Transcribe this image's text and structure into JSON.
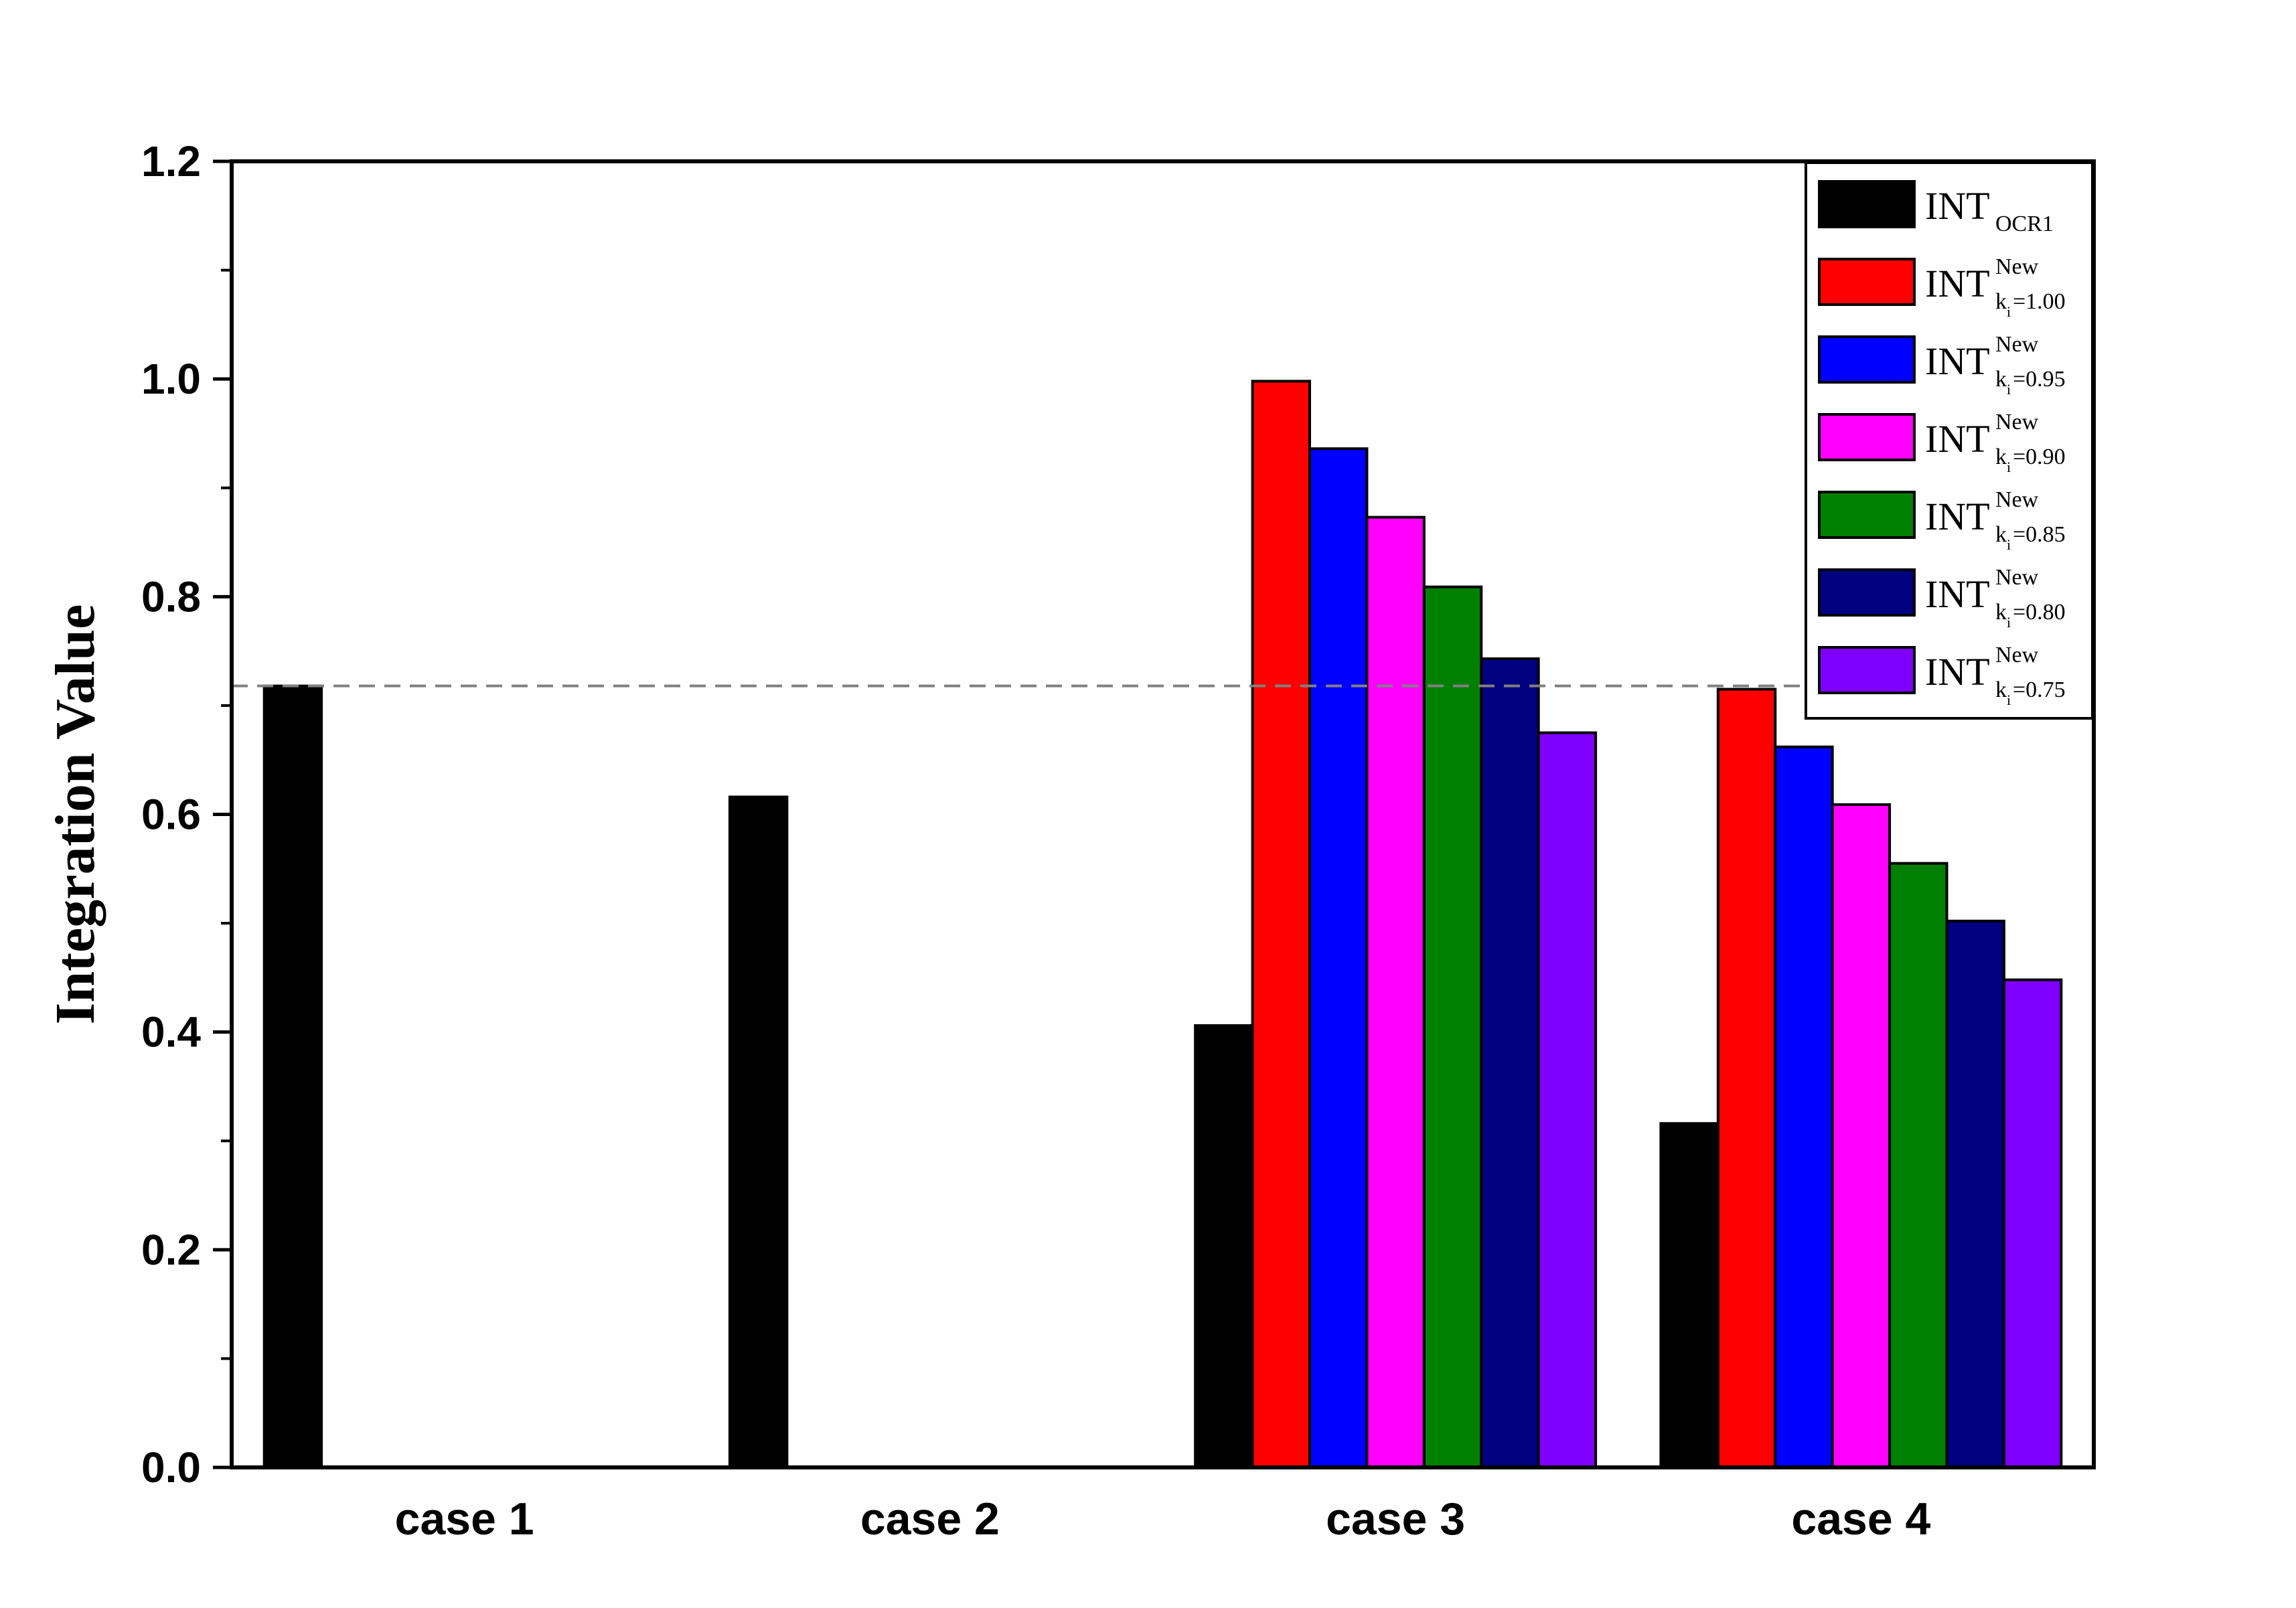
{
  "chart_data": {
    "type": "bar",
    "title": "",
    "xlabel": "",
    "ylabel": "Integration Value",
    "ylim": [
      0,
      1.2
    ],
    "yticks": [
      "0.0",
      "0.2",
      "0.4",
      "0.6",
      "0.8",
      "1.0",
      "1.2"
    ],
    "categories": [
      "case 1",
      "case 2",
      "case 3",
      "case 4"
    ],
    "reference_line": {
      "y": 0.718,
      "style": "dashed",
      "color": "#808080"
    },
    "grid": false,
    "legend_position": "top-right",
    "series": [
      {
        "base": "INT",
        "sup": "",
        "sub": "OCR1",
        "color": "#000000",
        "values": [
          0.718,
          0.616,
          0.406,
          0.316
        ]
      },
      {
        "base": "INT",
        "sup": "New",
        "sub": "k",
        "sub2": "i",
        "sub3": "=1.00",
        "color": "#ff0000",
        "values": [
          null,
          null,
          0.998,
          0.715
        ]
      },
      {
        "base": "INT",
        "sup": "New",
        "sub": "k",
        "sub2": "i",
        "sub3": "=0.95",
        "color": "#0000ff",
        "values": [
          null,
          null,
          0.936,
          0.662
        ]
      },
      {
        "base": "INT",
        "sup": "New",
        "sub": "k",
        "sub2": "i",
        "sub3": "=0.90",
        "color": "#ff00ff",
        "values": [
          null,
          null,
          0.873,
          0.609
        ]
      },
      {
        "base": "INT",
        "sup": "New",
        "sub": "k",
        "sub2": "i",
        "sub3": "=0.85",
        "color": "#008000",
        "values": [
          null,
          null,
          0.809,
          0.555
        ]
      },
      {
        "base": "INT",
        "sup": "New",
        "sub": "k",
        "sub2": "i",
        "sub3": "=0.80",
        "color": "#000080",
        "values": [
          null,
          null,
          0.743,
          0.502
        ]
      },
      {
        "base": "INT",
        "sup": "New",
        "sub": "k",
        "sub2": "i",
        "sub3": "=0.75",
        "color": "#8000ff",
        "values": [
          null,
          null,
          0.675,
          0.448
        ]
      }
    ]
  }
}
